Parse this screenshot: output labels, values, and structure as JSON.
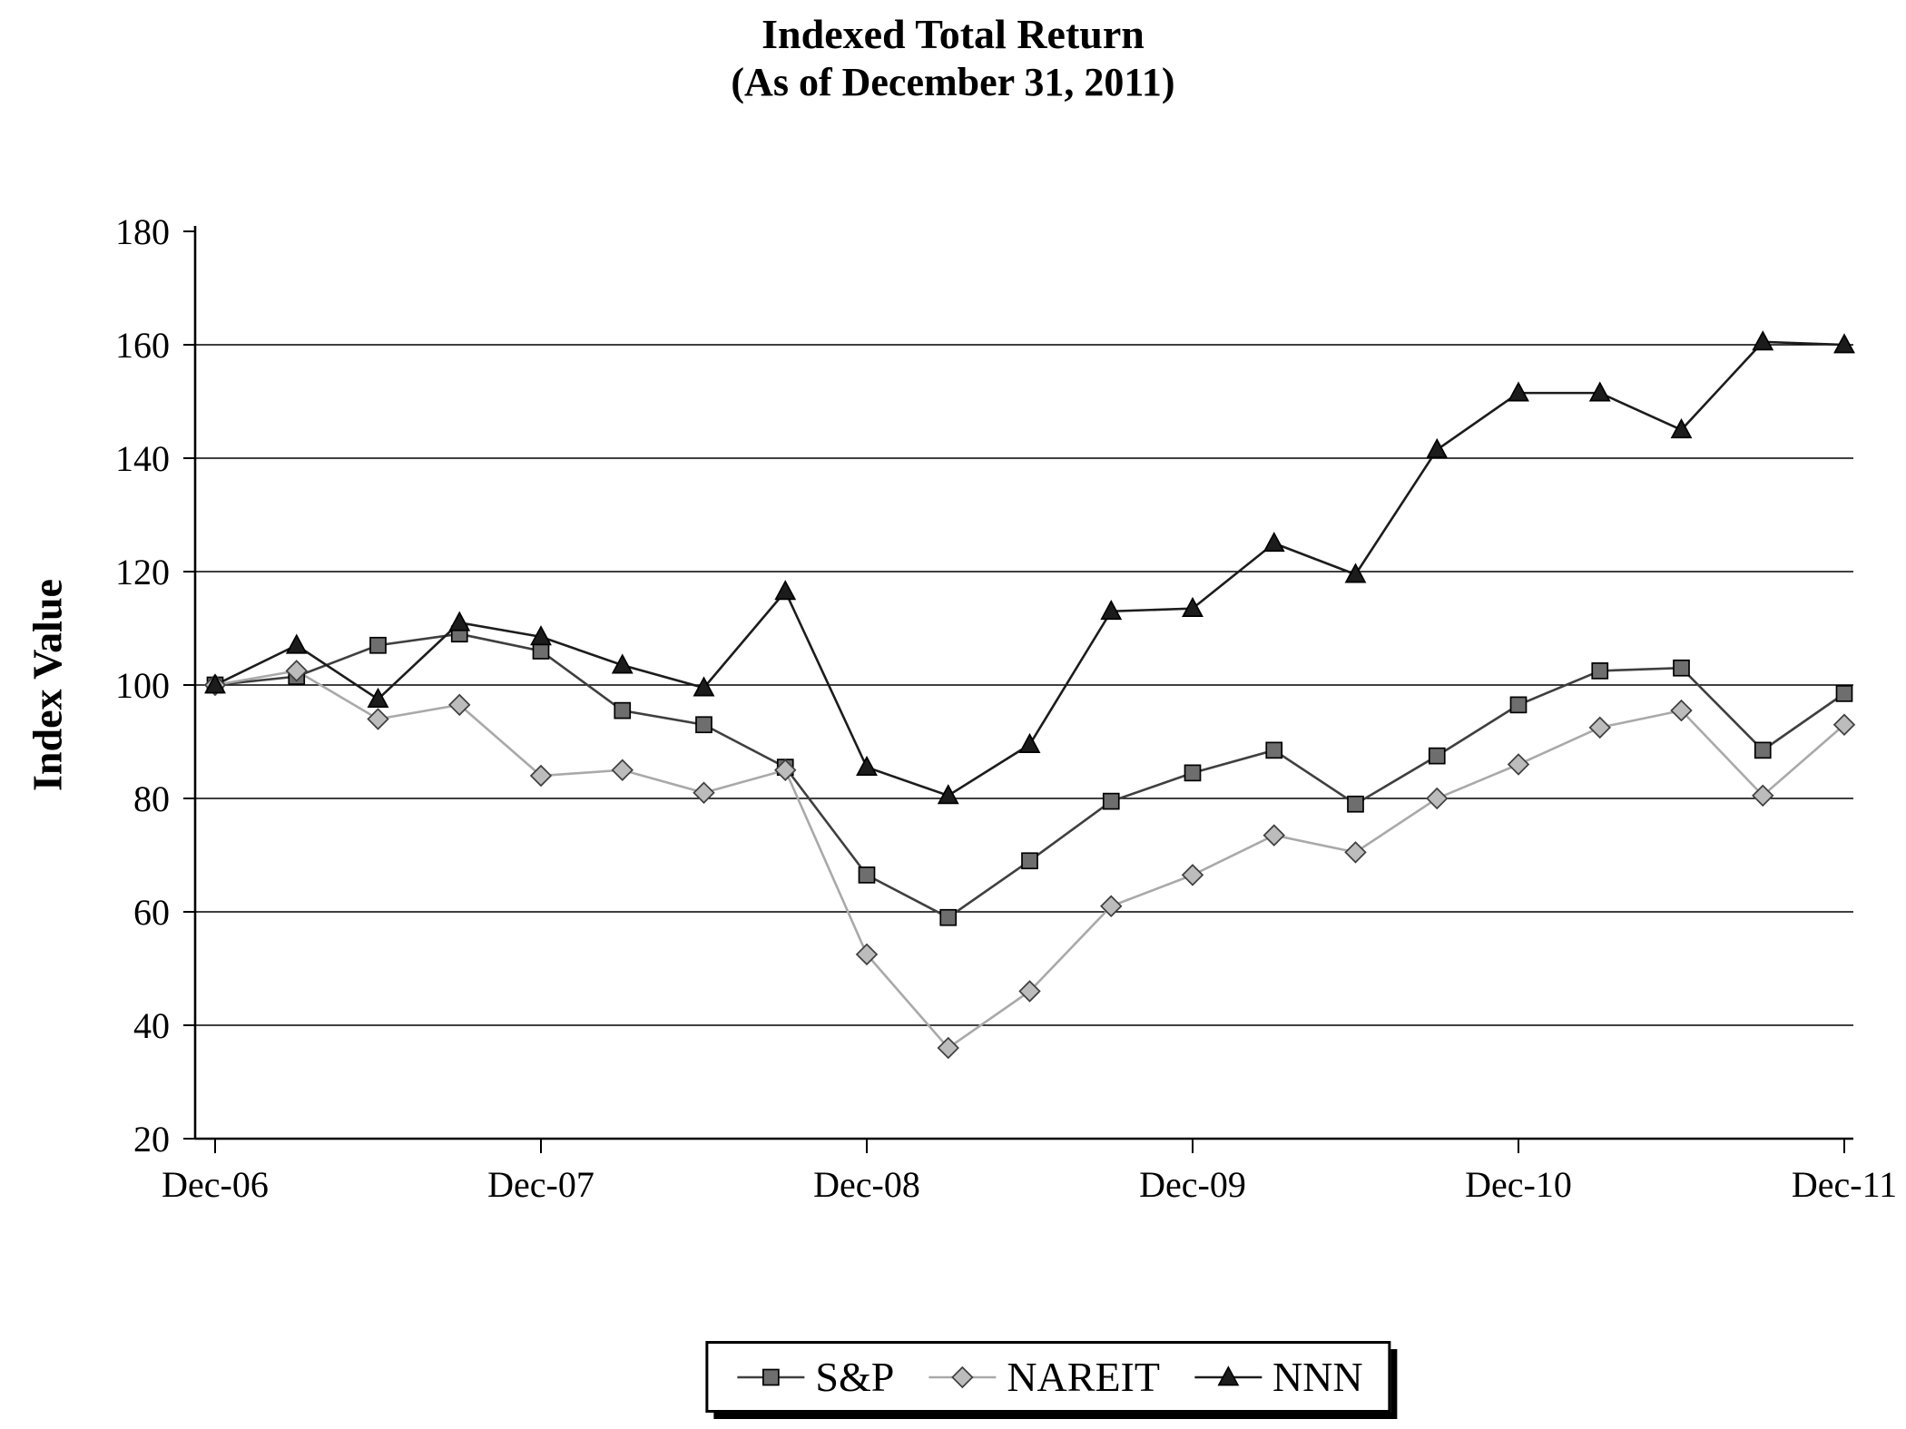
{
  "header": {
    "title": "Indexed Total Return",
    "subtitle": "(As of December 31, 2011)"
  },
  "chart_data": {
    "type": "line",
    "title": "Indexed Total Return",
    "subtitle": "(As of December 31, 2011)",
    "xlabel": "",
    "ylabel": "Index Value",
    "ylim": [
      20,
      180
    ],
    "ytick_step": 20,
    "grid": "horizontal",
    "legend_position": "bottom",
    "x_tick_labels": [
      "Dec-06",
      "Dec-07",
      "Dec-08",
      "Dec-09",
      "Dec-10",
      "Dec-11"
    ],
    "points_per_year": 4,
    "x_frequency": "quarterly",
    "series": [
      {
        "name": "S&P",
        "marker": "square",
        "line_color": "#3f3f3f",
        "fill_color": "#6e6e6e",
        "edge_color": "#000000",
        "values": [
          100,
          101.5,
          107,
          109,
          106,
          95.5,
          93,
          85.5,
          66.5,
          59,
          69,
          79.5,
          84.5,
          88.5,
          79,
          87.5,
          96.5,
          102.5,
          103,
          88.5,
          98.5
        ]
      },
      {
        "name": "NAREIT",
        "marker": "diamond",
        "line_color": "#a9a9a9",
        "fill_color": "#bcbcbc",
        "edge_color": "#3f3f3f",
        "values": [
          100,
          102.5,
          94,
          96.5,
          84,
          85,
          81,
          85,
          52.5,
          36,
          46,
          61,
          66.5,
          73.5,
          70.5,
          80,
          86,
          92.5,
          95.5,
          80.5,
          93
        ]
      },
      {
        "name": "NNN",
        "marker": "triangle",
        "line_color": "#1c1c1c",
        "fill_color": "#1c1c1c",
        "edge_color": "#000000",
        "values": [
          100,
          107,
          97.5,
          111,
          108.5,
          103.5,
          99.5,
          116.5,
          85.5,
          80.5,
          89.5,
          113,
          113.5,
          125,
          119.5,
          141.5,
          151.5,
          151.5,
          145,
          160.5,
          160
        ]
      }
    ]
  }
}
